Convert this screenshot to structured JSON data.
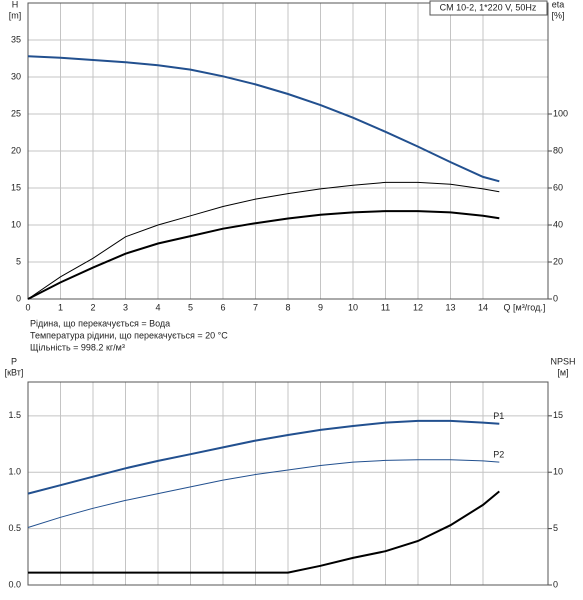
{
  "chart_data": [
    {
      "type": "line",
      "title": "CM 10-2, 1*220 V, 50Hz",
      "ylabel": "H",
      "yunit": "[m]",
      "y2label": "eta",
      "y2unit": "[%]",
      "xlabel": "Q [м³/год.]",
      "notes": [
        "Рідина, що перекачується = Вода",
        "Температура рідини, що перекачується = 20 °C",
        "Щільність = 998.2 кг/м³"
      ],
      "x": [
        0,
        1,
        2,
        3,
        4,
        5,
        6,
        7,
        8,
        9,
        10,
        11,
        12,
        13,
        14,
        14.5
      ],
      "xlim": [
        0,
        16
      ],
      "xticks": [
        0,
        1,
        2,
        3,
        4,
        5,
        6,
        7,
        8,
        9,
        10,
        11,
        12,
        13,
        14
      ],
      "ylim": [
        0,
        40
      ],
      "yticks": [
        0,
        5,
        10,
        15,
        20,
        25,
        30,
        35
      ],
      "y2lim": [
        0,
        160
      ],
      "y2ticks": [
        0,
        20,
        40,
        60,
        80,
        100
      ],
      "grid": true,
      "series": [
        {
          "color": "#22508f",
          "width": 2,
          "values": [
            32.8,
            32.6,
            32.3,
            32,
            31.6,
            31,
            30.1,
            29,
            27.7,
            26.2,
            24.5,
            22.6,
            20.6,
            18.5,
            16.5,
            15.9
          ]
        },
        {
          "color": "#000000",
          "width": 1,
          "axis": "y2",
          "values": [
            0,
            12,
            22,
            33.6,
            40,
            45,
            50,
            54,
            57,
            59.5,
            61.5,
            63,
            63,
            62,
            59.5,
            58
          ]
        },
        {
          "color": "#000000",
          "width": 2,
          "axis": "y2",
          "values": [
            0,
            9,
            17,
            24.5,
            30,
            34,
            38,
            41,
            43.5,
            45.5,
            46.8,
            47.5,
            47.5,
            46.8,
            45,
            43.7
          ]
        }
      ]
    },
    {
      "type": "line",
      "ylabel": "P",
      "yunit": "[кВт]",
      "y2label": "NPSH",
      "y2unit": "[м]",
      "x": [
        0,
        1,
        2,
        3,
        4,
        5,
        6,
        7,
        8,
        9,
        10,
        11,
        12,
        13,
        14,
        14.5
      ],
      "xlim": [
        0,
        16
      ],
      "xticks": [
        0,
        1,
        2,
        3,
        4,
        5,
        6,
        7,
        8,
        9,
        10,
        11,
        12,
        13,
        14
      ],
      "ylim": [
        0,
        1.8
      ],
      "yticks": [
        {
          "value": 0,
          "label": "0.0"
        },
        {
          "value": 0.5,
          "label": "0.5"
        },
        {
          "value": 1,
          "label": "1.0"
        },
        {
          "value": 1.5,
          "label": "1.5"
        }
      ],
      "y2lim": [
        0,
        18
      ],
      "y2ticks": [
        0,
        5,
        10,
        15
      ],
      "grid": true,
      "series": [
        {
          "name": "P1",
          "color": "#22508f",
          "width": 2,
          "values": [
            0.81,
            0.885,
            0.96,
            1.035,
            1.1,
            1.16,
            1.22,
            1.28,
            1.33,
            1.375,
            1.41,
            1.44,
            1.455,
            1.455,
            1.44,
            1.43
          ]
        },
        {
          "name": "P2",
          "color": "#22508f",
          "width": 1,
          "values": [
            0.51,
            0.6,
            0.68,
            0.75,
            0.81,
            0.87,
            0.93,
            0.98,
            1.02,
            1.06,
            1.09,
            1.105,
            1.11,
            1.11,
            1.1,
            1.09
          ]
        },
        {
          "color": "#000000",
          "width": 2,
          "axis": "y2",
          "values": [
            1.1,
            1.1,
            1.1,
            1.1,
            1.1,
            1.1,
            1.1,
            1.1,
            1.1,
            1.7,
            2.4,
            3.0,
            3.9,
            5.3,
            7.1,
            8.3
          ]
        }
      ]
    }
  ]
}
